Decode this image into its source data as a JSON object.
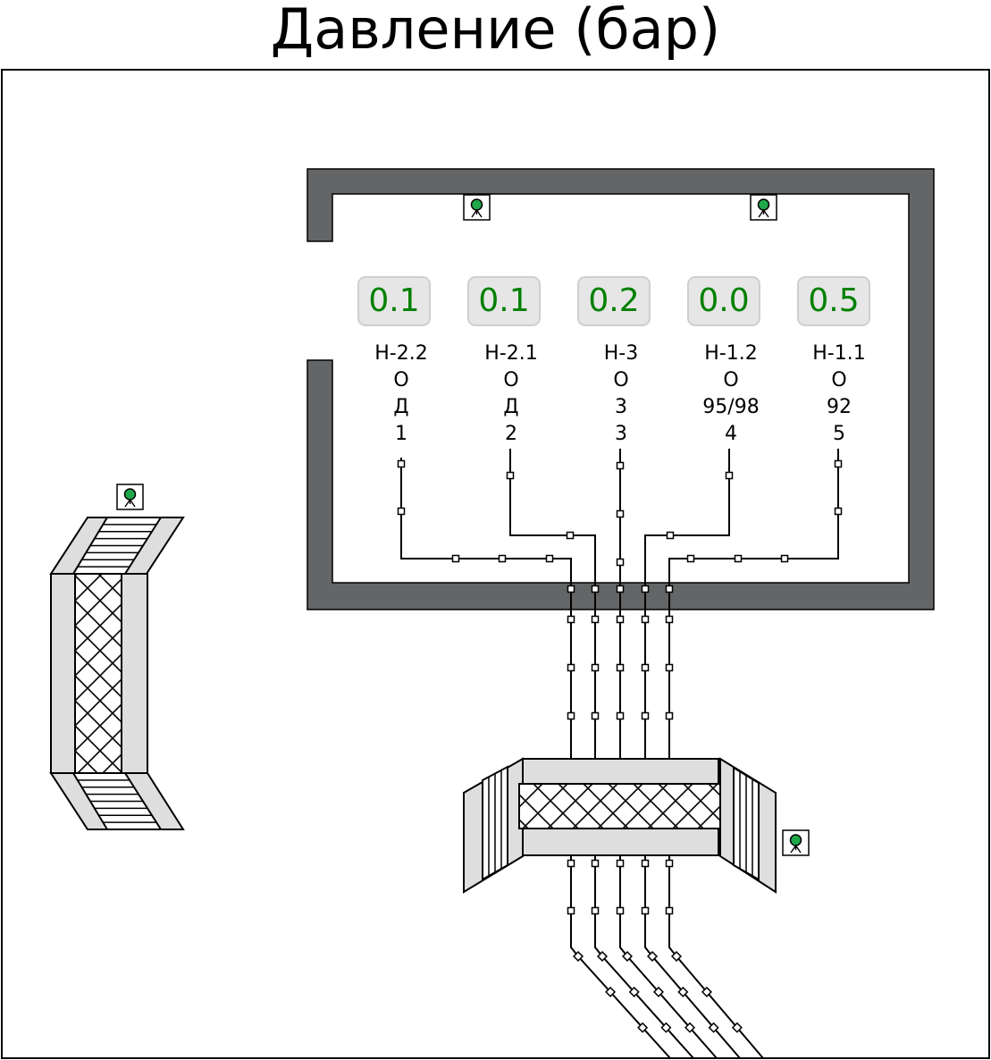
{
  "title": "Давление (бар)",
  "colors": {
    "wall": "#646566",
    "value_text": "#008000",
    "sensor_dot": "#1fa84a",
    "gauge_fill": "#e6e6e6",
    "panel_fill": "#dedede"
  },
  "icons": {
    "sensor": "sensor-icon",
    "sensors_count": 4
  },
  "gauges": [
    {
      "value": "0.1",
      "tag": "Н-2.2",
      "row2": "О",
      "row3": "Д",
      "row4": "1"
    },
    {
      "value": "0.1",
      "tag": "Н-2.1",
      "row2": "О",
      "row3": "Д",
      "row4": "2"
    },
    {
      "value": "0.2",
      "tag": "Н-3",
      "row2": "О",
      "row3": "3",
      "row4": "3"
    },
    {
      "value": "0.0",
      "tag": "Н-1.2",
      "row2": "О",
      "row3": "95/98",
      "row4": "4"
    },
    {
      "value": "0.5",
      "tag": "Н-1.1",
      "row2": "О",
      "row3": "92",
      "row4": "5"
    }
  ]
}
